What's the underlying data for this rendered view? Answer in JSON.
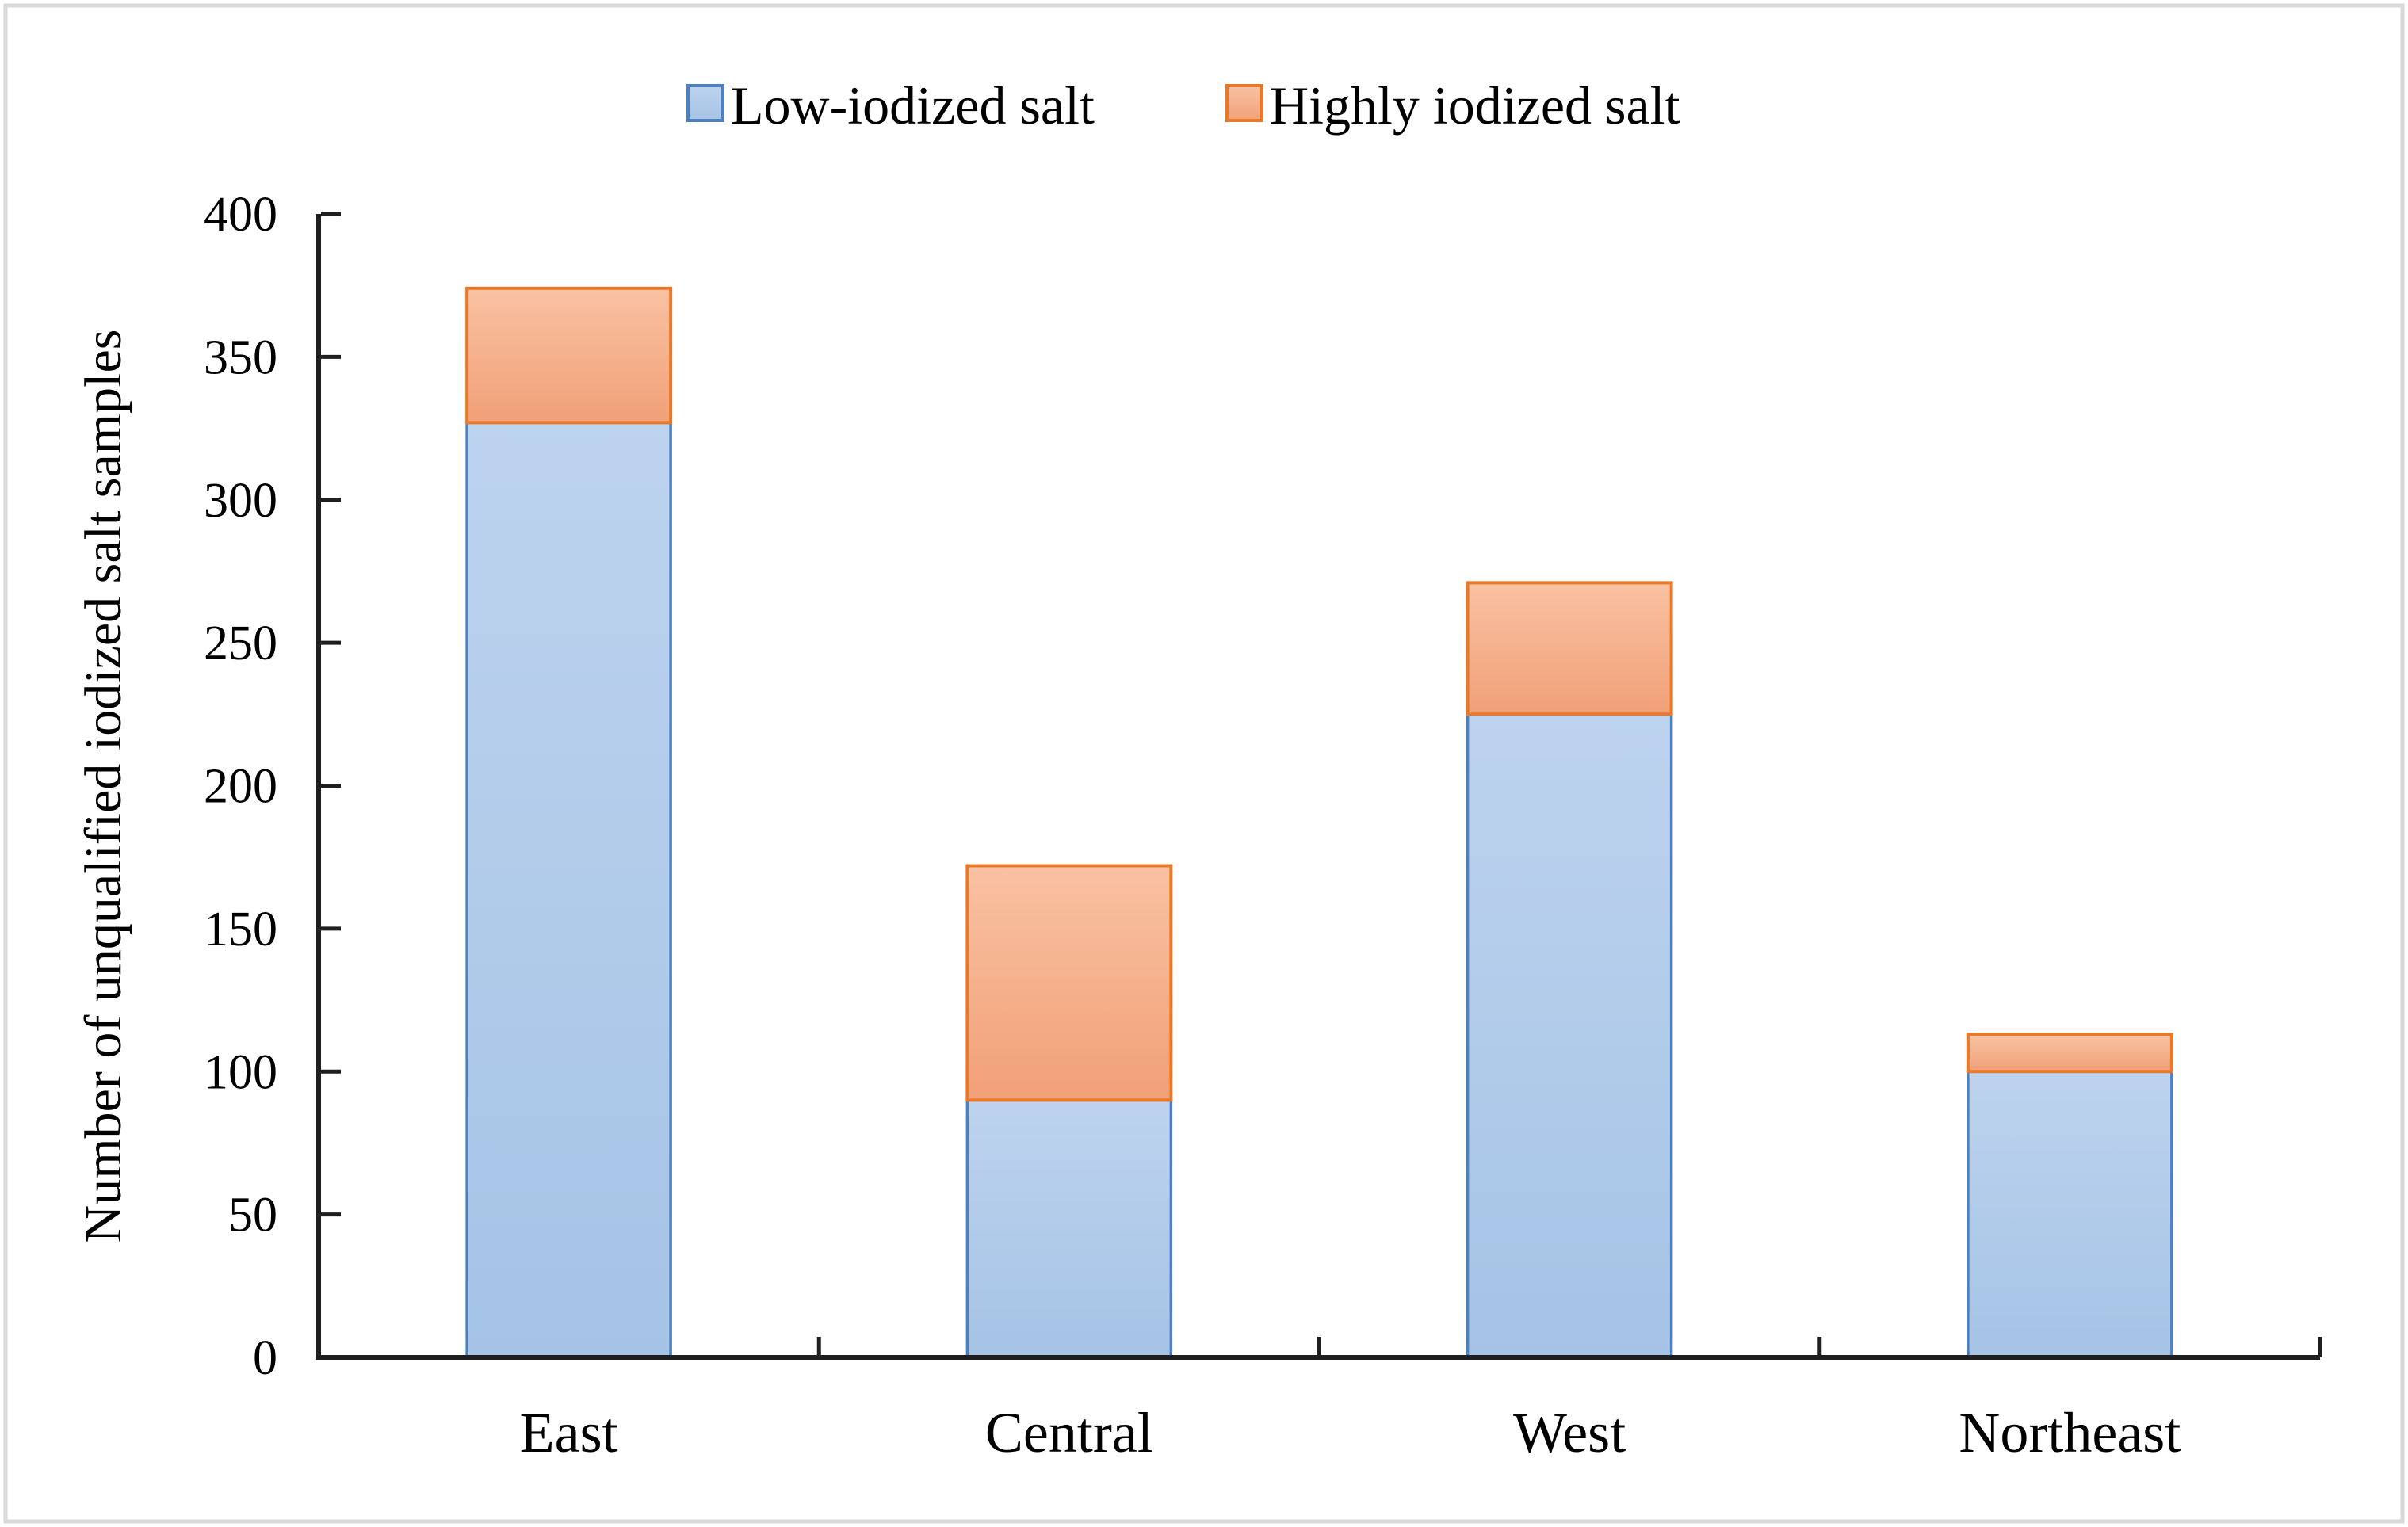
{
  "chart_data": {
    "type": "bar",
    "stacked": true,
    "title": "",
    "categories": [
      "East",
      "Central",
      "West",
      "Northeast"
    ],
    "series": [
      {
        "name": "Low-iodized salt",
        "values": [
          327,
          90,
          225,
          100
        ]
      },
      {
        "name": "Highly iodized salt",
        "values": [
          47,
          82,
          46,
          13
        ]
      }
    ],
    "totals": [
      374,
      172,
      271,
      113
    ],
    "xlabel": "",
    "ylabel": "Number of unqualified iodized salt samples",
    "ylim": [
      0,
      400
    ],
    "ytick_step": 50,
    "ytick_labels": [
      "0",
      "50",
      "100",
      "150",
      "200",
      "250",
      "300",
      "350",
      "400"
    ],
    "legend_position": "top-center",
    "grid": false
  },
  "colors": {
    "low_fill_top": "#BDD3EE",
    "low_fill_bottom": "#A5C3E6",
    "low_border": "#4E80BE",
    "high_fill_top": "#F9C2A2",
    "high_fill_bottom": "#F1A077",
    "high_border": "#E8792A",
    "axis": "#1F1F1F",
    "frame": "#D8D8D8",
    "background": "#FFFFFF"
  }
}
